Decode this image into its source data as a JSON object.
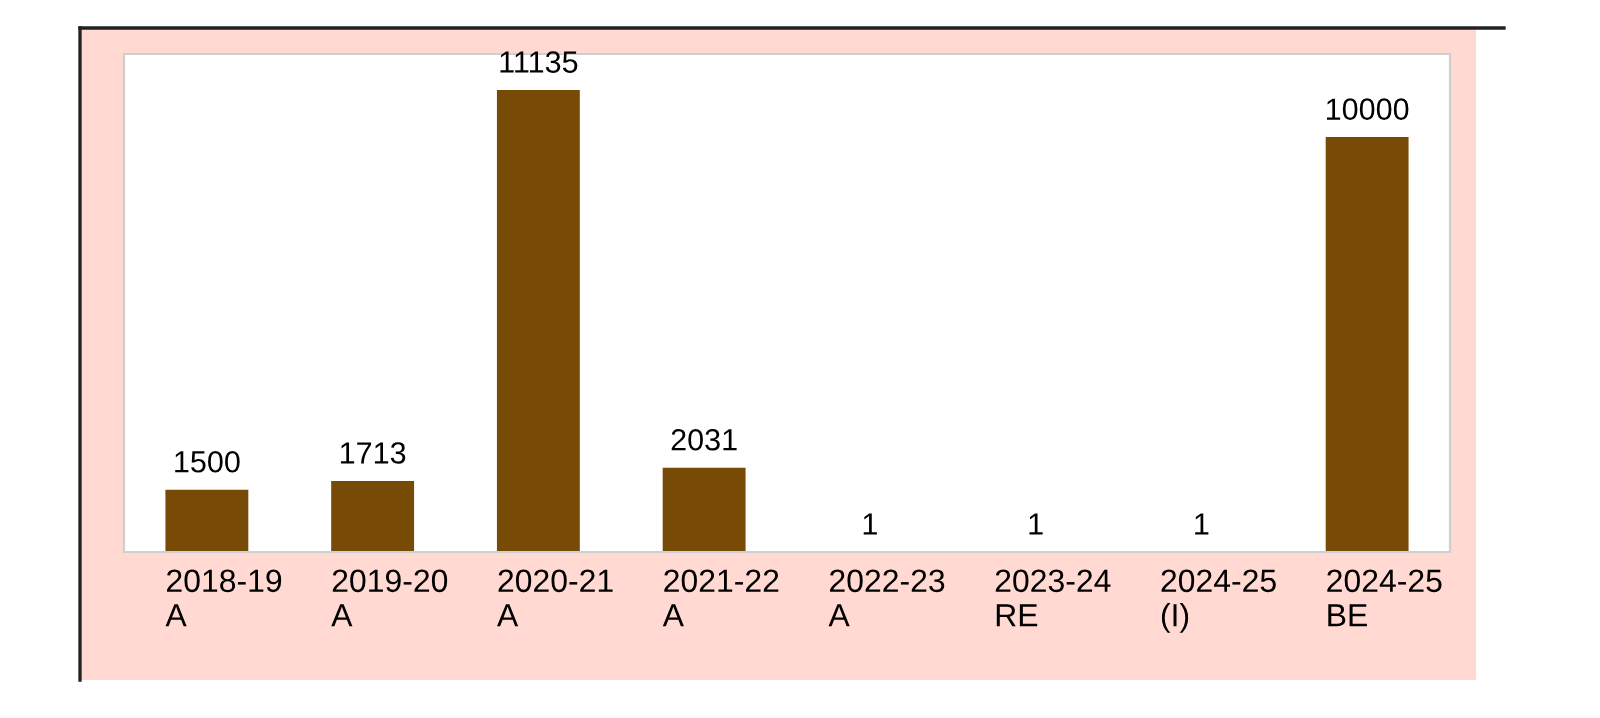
{
  "chart_data": {
    "type": "bar",
    "categories": [
      "2018-19\nA",
      "2019-20\nA",
      "2020-21\nA",
      "2021-22\nA",
      "2022-23\nA",
      "2023-24\nRE",
      "2024-25\n(I)",
      "2024-25\nBE"
    ],
    "values": [
      1500,
      1713,
      11135,
      2031,
      1,
      1,
      1,
      10000
    ],
    "color": "#774a05",
    "data_labels": true,
    "grid": false,
    "legend": false
  }
}
